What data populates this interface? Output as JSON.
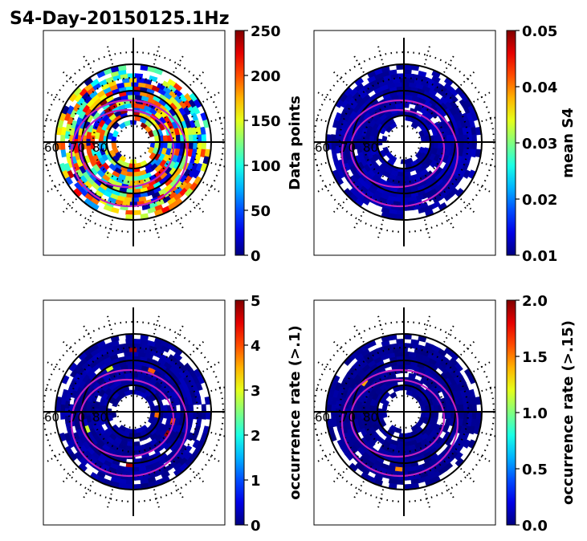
{
  "chart_data": {
    "type": "heatmap",
    "title": "S4-Day-20150125.1Hz",
    "projection": "polar",
    "polar_labels": [
      "60",
      "70",
      "80"
    ],
    "panels": [
      {
        "id": "data-points",
        "colorbar_label": "Data points",
        "vmin": 0,
        "vmax": 250,
        "ticks": [
          "0",
          "50",
          "100",
          "150",
          "200",
          "250"
        ],
        "fill_mean": 0.42,
        "fill_spread": 0.45,
        "hot_spots": 0.18
      },
      {
        "id": "mean-s4",
        "colorbar_label": "mean S4",
        "vmin": 0.01,
        "vmax": 0.05,
        "ticks": [
          "0.01",
          "0.02",
          "0.03",
          "0.04",
          "0.05"
        ],
        "fill_mean": 0.04,
        "fill_spread": 0.03,
        "hot_spots": 0.0
      },
      {
        "id": "occurrence-rate-01",
        "colorbar_label": "occurrence rate (>.1)",
        "vmin": 0,
        "vmax": 5,
        "ticks": [
          "0",
          "1",
          "2",
          "3",
          "4",
          "5"
        ],
        "fill_mean": 0.03,
        "fill_spread": 0.03,
        "hot_spots": 0.02
      },
      {
        "id": "occurrence-rate-015",
        "colorbar_label": "occurrence rate (>.15)",
        "vmin": 0.0,
        "vmax": 2.0,
        "ticks": [
          "0.0",
          "0.5",
          "1.0",
          "1.5",
          "2.0"
        ],
        "fill_mean": 0.02,
        "fill_spread": 0.02,
        "hot_spots": 0.005
      }
    ]
  }
}
